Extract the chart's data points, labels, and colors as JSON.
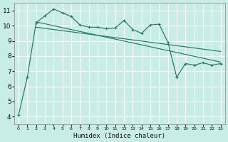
{
  "bg_color": "#c8ece6",
  "grid_color": "#ffffff",
  "line_color": "#1e7a6a",
  "xlabel": "Humidex (Indice chaleur)",
  "xlim": [
    -0.5,
    23.5
  ],
  "ylim": [
    3.5,
    11.5
  ],
  "xticks": [
    0,
    1,
    2,
    3,
    4,
    5,
    6,
    7,
    8,
    9,
    10,
    11,
    12,
    13,
    14,
    15,
    16,
    17,
    18,
    19,
    20,
    21,
    22,
    23
  ],
  "yticks": [
    4,
    5,
    6,
    7,
    8,
    9,
    10,
    11
  ],
  "zigzag_x": [
    0,
    1,
    2,
    3,
    4,
    5,
    6,
    7,
    8,
    9,
    10,
    11,
    12,
    13,
    14,
    15,
    16,
    17,
    18,
    19,
    20,
    21,
    22,
    23
  ],
  "zigzag_y": [
    4.1,
    6.6,
    10.2,
    10.65,
    11.1,
    10.85,
    10.6,
    10.05,
    9.9,
    9.9,
    9.8,
    9.85,
    10.35,
    9.75,
    9.5,
    10.05,
    10.1,
    8.9,
    6.6,
    7.5,
    7.4,
    7.55,
    7.4,
    7.5
  ],
  "line1_x": [
    2,
    23
  ],
  "line1_y": [
    10.25,
    7.6
  ],
  "line2_x": [
    2,
    23
  ],
  "line2_y": [
    9.9,
    8.3
  ],
  "title_text": ""
}
